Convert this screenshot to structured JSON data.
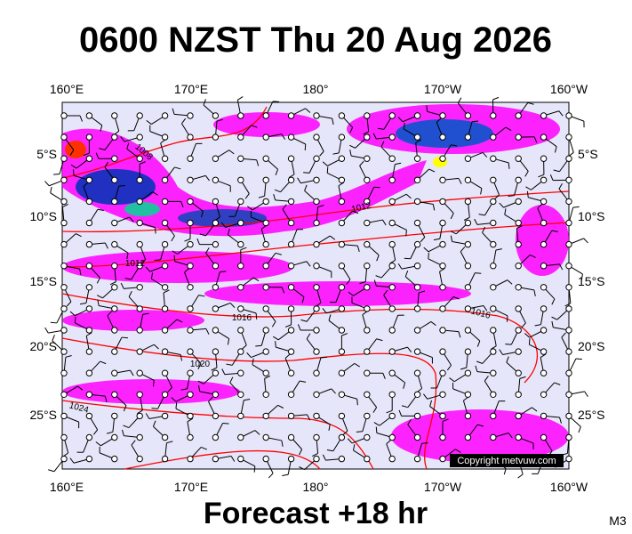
{
  "header": {
    "title": "0600 NZST Thu 20 Aug 2026"
  },
  "axes": {
    "longitudes": [
      "160°E",
      "170°E",
      "180°",
      "170°W",
      "160°W"
    ],
    "latitudes": [
      "5°S",
      "10°S",
      "15°S",
      "20°S",
      "25°S"
    ]
  },
  "isobar_labels": [
    "1008",
    "1012",
    "1012",
    "1016",
    "1016",
    "1020",
    "1024"
  ],
  "copyright": "Copyright metvuw.com",
  "footer": {
    "caption": "Forecast +18 hr",
    "model": "M3"
  }
}
